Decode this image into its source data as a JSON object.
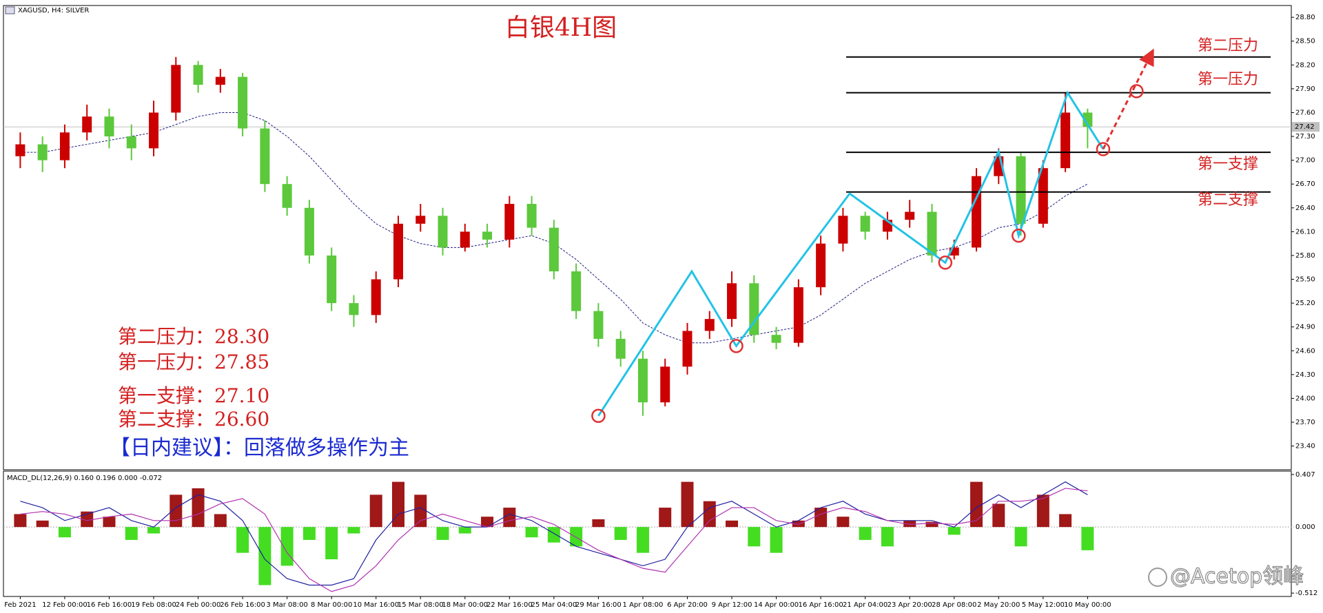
{
  "chart_data": [
    {
      "type": "candlestick",
      "symbol_label": "XAGUSD, H4:  SILVER",
      "title": "白银4H图",
      "categories": [
        "Feb 2021",
        null,
        "12 Feb 00:00",
        null,
        "16 Feb 16:00",
        null,
        "19 Feb 08:00",
        null,
        "24 Feb 00:00",
        null,
        "26 Feb 16:00",
        null,
        "3 Mar 08:00",
        null,
        "8 Mar 00:00",
        null,
        "10 Mar 16:00",
        null,
        "15 Mar 08:00",
        null,
        "18 Mar 00:00",
        null,
        "22 Mar 16:00",
        null,
        "25 Mar 04:00",
        null,
        "29 Mar 16:00",
        null,
        "1 Apr 08:00",
        null,
        "6 Apr 20:00",
        null,
        "9 Apr 12:00",
        null,
        "14 Apr 00:00",
        null,
        "16 Apr 16:00",
        null,
        "21 Apr 04:00",
        null,
        "23 Apr 20:00",
        null,
        "28 Apr 08:00",
        null,
        "2 May 20:00",
        null,
        "5 May 12:00",
        null,
        "10 May 00:00"
      ],
      "opens": [
        27.05,
        27.2,
        27.0,
        27.35,
        27.55,
        27.3,
        27.15,
        27.6,
        28.2,
        27.95,
        28.05,
        27.4,
        26.7,
        26.4,
        25.8,
        25.2,
        25.05,
        25.5,
        26.2,
        26.3,
        25.9,
        26.1,
        26.0,
        26.45,
        26.15,
        25.6,
        25.1,
        24.75,
        24.5,
        23.95,
        24.4,
        24.85,
        25.0,
        25.45,
        24.8,
        24.7,
        25.4,
        25.95,
        26.3,
        26.1,
        26.25,
        26.35,
        25.8,
        25.9,
        26.8,
        27.05,
        26.2,
        26.9,
        27.6
      ],
      "highs": [
        27.35,
        27.3,
        27.45,
        27.7,
        27.65,
        27.45,
        27.75,
        28.3,
        28.25,
        28.15,
        28.1,
        27.5,
        26.8,
        26.5,
        25.9,
        25.3,
        25.6,
        26.3,
        26.45,
        26.4,
        26.2,
        26.2,
        26.55,
        26.55,
        26.25,
        25.7,
        25.2,
        24.85,
        24.6,
        24.5,
        24.95,
        25.1,
        25.6,
        25.55,
        24.9,
        25.5,
        26.05,
        26.4,
        26.35,
        26.35,
        26.5,
        26.45,
        26.0,
        26.9,
        27.15,
        27.1,
        27.0,
        27.85,
        27.65
      ],
      "lows": [
        26.9,
        26.85,
        26.9,
        27.25,
        27.15,
        27.0,
        27.05,
        27.5,
        27.85,
        27.85,
        27.3,
        26.6,
        26.3,
        25.7,
        25.1,
        24.9,
        24.95,
        25.4,
        26.1,
        25.8,
        25.85,
        25.9,
        25.9,
        26.05,
        25.5,
        25.0,
        24.65,
        24.4,
        23.78,
        23.9,
        24.3,
        24.75,
        24.9,
        24.7,
        24.62,
        24.65,
        25.3,
        25.85,
        26.0,
        26.0,
        26.15,
        25.71,
        25.75,
        25.85,
        26.7,
        26.05,
        26.15,
        26.85,
        27.15
      ],
      "closes": [
        27.2,
        27.0,
        27.35,
        27.55,
        27.3,
        27.15,
        27.6,
        28.2,
        27.95,
        28.05,
        27.4,
        26.7,
        26.4,
        25.8,
        25.2,
        25.05,
        25.5,
        26.2,
        26.3,
        25.9,
        26.1,
        26.0,
        26.45,
        26.15,
        25.6,
        25.1,
        24.75,
        24.5,
        23.95,
        24.4,
        24.85,
        25.0,
        25.45,
        24.8,
        24.7,
        25.4,
        25.95,
        26.3,
        26.1,
        26.25,
        26.35,
        25.8,
        25.9,
        26.8,
        27.05,
        26.2,
        26.9,
        27.6,
        27.42
      ],
      "up_color": "#cc0000",
      "down_color": "#5cc83c",
      "ma": {
        "color": "#1a1a80",
        "values": [
          27.1,
          27.1,
          27.15,
          27.2,
          27.25,
          27.3,
          27.35,
          27.45,
          27.55,
          27.6,
          27.6,
          27.5,
          27.3,
          27.05,
          26.75,
          26.45,
          26.2,
          26.05,
          25.95,
          25.9,
          25.9,
          25.95,
          26.0,
          26.05,
          25.95,
          25.75,
          25.5,
          25.25,
          24.95,
          24.8,
          24.7,
          24.7,
          24.75,
          24.8,
          24.85,
          24.9,
          25.05,
          25.25,
          25.45,
          25.6,
          25.75,
          25.85,
          25.9,
          26.0,
          26.15,
          26.2,
          26.35,
          26.55,
          26.7
        ]
      },
      "current_price": 27.42,
      "ylim": [
        23.11,
        28.94
      ],
      "yticks": [
        {
          "value": 23.4,
          "label": "23.40"
        },
        {
          "value": 23.7,
          "label": "23.70"
        },
        {
          "value": 24.0,
          "label": "24.00"
        },
        {
          "value": 24.3,
          "label": "24.30"
        },
        {
          "value": 24.6,
          "label": "24.60"
        },
        {
          "value": 24.9,
          "label": "24.90"
        },
        {
          "value": 25.2,
          "label": "25.20"
        },
        {
          "value": 25.5,
          "label": "25.50"
        },
        {
          "value": 25.8,
          "label": "25.80"
        },
        {
          "value": 26.1,
          "label": "26.10"
        },
        {
          "value": 26.4,
          "label": "26.40"
        },
        {
          "value": 26.7,
          "label": "26.70"
        },
        {
          "value": 27.0,
          "label": "27.00"
        },
        {
          "value": 27.3,
          "label": "27.30"
        },
        {
          "value": 27.6,
          "label": "27.60"
        },
        {
          "value": 27.9,
          "label": "27.90"
        },
        {
          "value": 28.2,
          "label": "28.20"
        },
        {
          "value": 28.5,
          "label": "28.50"
        },
        {
          "value": 28.8,
          "label": "28.80"
        }
      ],
      "levels": {
        "names": [
          "第二压力",
          "第一压力",
          "第一支撑",
          "第二支撑"
        ],
        "separator": "：",
        "values": [
          28.3,
          27.85,
          27.1,
          26.6
        ],
        "value_labels": [
          "28.30",
          "27.85",
          "27.10",
          "26.60"
        ],
        "color": "#d42020"
      },
      "advice": "【日内建议】：回落做多操作为主",
      "annotations": {
        "zigzag": {
          "color": "#22c3e6",
          "x": [
            26.0,
            30.2,
            32.2,
            37.3,
            41.6,
            44.0,
            44.9,
            47.1,
            48.7
          ],
          "y": [
            23.78,
            25.6,
            24.66,
            26.58,
            25.71,
            27.11,
            26.05,
            27.85,
            27.14
          ]
        },
        "circles": {
          "color": "#e03030",
          "x": [
            26.0,
            32.2,
            41.6,
            44.9,
            48.7,
            50.2
          ],
          "y": [
            23.78,
            24.66,
            25.71,
            26.05,
            27.14,
            27.87
          ]
        },
        "arrow": {
          "color": "#e03030",
          "x": [
            48.7,
            50.9
          ],
          "y": [
            27.14,
            28.36
          ]
        }
      },
      "watermark": "@Acetop领峰"
    },
    {
      "type": "macd",
      "title": "MACD_DL(12,26,9) 0.160 0.196 0.000 -0.072",
      "histogram": {
        "up_color": "#a01818",
        "down_color": "#44dd22",
        "values": [
          0.1,
          0.05,
          -0.08,
          0.12,
          0.08,
          -0.1,
          -0.05,
          0.25,
          0.3,
          0.1,
          -0.2,
          -0.45,
          -0.3,
          -0.1,
          -0.25,
          -0.05,
          0.25,
          0.35,
          0.25,
          -0.1,
          -0.05,
          0.08,
          0.15,
          -0.08,
          -0.12,
          -0.15,
          0.06,
          -0.1,
          -0.2,
          0.15,
          0.35,
          0.2,
          0.05,
          -0.15,
          -0.2,
          0.05,
          0.15,
          0.08,
          -0.1,
          -0.15,
          0.05,
          0.04,
          -0.06,
          0.35,
          0.18,
          -0.15,
          0.25,
          0.1,
          -0.18
        ]
      },
      "series": [
        {
          "color": "#2020a0",
          "values": [
            0.2,
            0.15,
            0.05,
            0.1,
            0.15,
            0.05,
            0.0,
            0.15,
            0.25,
            0.2,
            0.05,
            -0.25,
            -0.4,
            -0.45,
            -0.45,
            -0.4,
            -0.1,
            0.1,
            0.15,
            0.05,
            0.0,
            0.0,
            0.1,
            0.05,
            -0.05,
            -0.15,
            -0.2,
            -0.25,
            -0.3,
            -0.25,
            0.0,
            0.15,
            0.2,
            0.1,
            0.0,
            0.05,
            0.15,
            0.2,
            0.1,
            0.05,
            0.05,
            0.05,
            0.0,
            0.15,
            0.25,
            0.15,
            0.25,
            0.35,
            0.25
          ]
        },
        {
          "color": "#b030b0",
          "values": [
            0.1,
            0.12,
            0.1,
            0.05,
            0.08,
            0.1,
            0.05,
            0.05,
            0.1,
            0.18,
            0.22,
            0.1,
            -0.2,
            -0.4,
            -0.5,
            -0.45,
            -0.3,
            -0.1,
            0.05,
            0.1,
            0.05,
            0.0,
            0.05,
            0.08,
            0.02,
            -0.08,
            -0.18,
            -0.25,
            -0.32,
            -0.35,
            -0.15,
            0.05,
            0.15,
            0.15,
            0.05,
            0.02,
            0.1,
            0.15,
            0.12,
            0.05,
            0.02,
            0.03,
            0.02,
            0.05,
            0.2,
            0.2,
            0.22,
            0.3,
            0.28
          ]
        }
      ],
      "ylim": [
        -0.538,
        0.433
      ],
      "yticks": [
        0.407,
        {
          "value": 0,
          "label": "0.000"
        },
        -0.512
      ]
    }
  ]
}
